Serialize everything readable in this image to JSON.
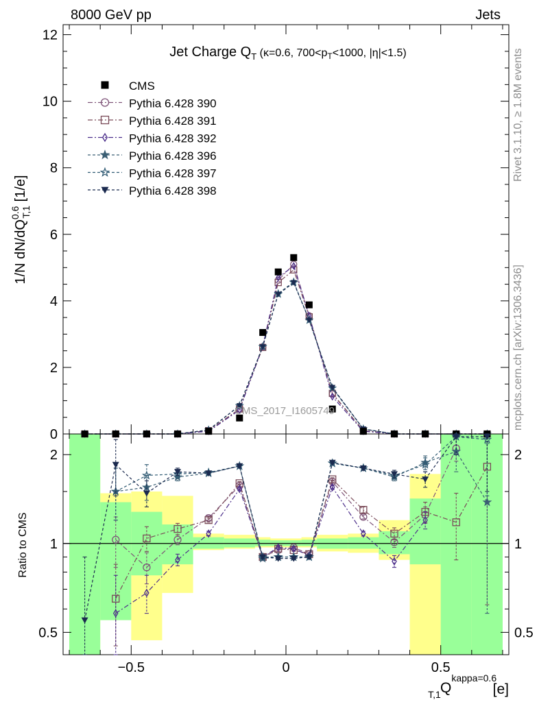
{
  "header": {
    "left": "8000 GeV pp",
    "right": "Jets"
  },
  "side_labels": {
    "rivet": "Rivet 3.1.10, ≥ 1.8M events",
    "mcplots": "mcplots.cern.ch [arXiv:1306.3436]"
  },
  "chart_data": {
    "type": "scatter",
    "title": "Jet Charge Q_T (κ=0.6, 700<p_T<1000, |η|<1.5)",
    "watermark": "CMS_2017_I1605749",
    "main": {
      "ylabel": "1/N dN/dQ^0.6_T,1 [1/e]",
      "ylim": [
        0,
        12.3
      ],
      "y_ticks": [
        0,
        2,
        4,
        6,
        8,
        10,
        12
      ],
      "xlim": [
        -0.72,
        0.72
      ]
    },
    "ratio": {
      "ylabel": "Ratio to CMS",
      "log_scale": true,
      "ylim": [
        0.42,
        2.35
      ],
      "y_ticks": [
        0.5,
        1,
        2
      ],
      "reference_line": 1
    },
    "xlabel": "Q^kappa=0.6_T,1 [e]",
    "x_ticks": [
      -0.5,
      0,
      0.5
    ],
    "x": [
      -0.65,
      -0.55,
      -0.45,
      -0.35,
      -0.25,
      -0.15,
      -0.075,
      -0.025,
      0.025,
      0.075,
      0.15,
      0.25,
      0.35,
      0.45,
      0.55,
      0.65
    ],
    "data_series": {
      "name": "CMS",
      "values": [
        0.0,
        0.0,
        0.0,
        0.0,
        0.08,
        0.48,
        3.05,
        4.87,
        5.3,
        3.88,
        0.75,
        0.08,
        0.0,
        0.0,
        0.0,
        0.0
      ]
    },
    "series": [
      {
        "name": "Pythia 6.428 390",
        "color": "#7e5378",
        "marker": "circle-open",
        "dash": "7,3,2,3",
        "ratio": [
          null,
          1.03,
          0.83,
          1.03,
          1.22,
          1.57,
          0.9,
          0.95,
          0.97,
          0.92,
          1.62,
          1.23,
          1.01,
          1.25,
          2.1,
          null
        ],
        "ratio_err": [
          null,
          0.2,
          0.1,
          0.04,
          0.02,
          0.02,
          0.01,
          0.01,
          0.01,
          0.01,
          0.02,
          0.02,
          0.04,
          0.08,
          0.2,
          null
        ]
      },
      {
        "name": "Pythia 6.428 391",
        "color": "#7a4a58",
        "marker": "square-open",
        "dash": "7,3,2,3",
        "ratio": [
          null,
          0.65,
          1.04,
          1.12,
          1.2,
          1.6,
          0.9,
          0.96,
          0.95,
          0.92,
          1.65,
          1.3,
          1.08,
          1.28,
          1.18,
          1.82
        ],
        "ratio_err": [
          null,
          0.2,
          0.1,
          0.05,
          0.02,
          0.02,
          0.01,
          0.01,
          0.01,
          0.01,
          0.02,
          0.03,
          0.05,
          0.1,
          0.3,
          1.2
        ]
      },
      {
        "name": "Pythia 6.428 392",
        "color": "#4b2d8a",
        "marker": "diamond-open",
        "dash": "7,3,2,3",
        "ratio": [
          null,
          0.58,
          0.68,
          0.88,
          1.08,
          1.53,
          0.9,
          0.97,
          0.96,
          0.91,
          1.55,
          1.08,
          0.87,
          1.2,
          null,
          null
        ],
        "ratio_err": [
          null,
          0.2,
          0.1,
          0.04,
          0.02,
          0.02,
          0.01,
          0.01,
          0.01,
          0.01,
          0.02,
          0.02,
          0.04,
          0.08,
          null,
          null
        ]
      },
      {
        "name": "Pythia 6.428 396",
        "color": "#3b5f74",
        "marker": "star-filled",
        "dash": "4,3",
        "ratio": [
          null,
          1.5,
          1.55,
          1.68,
          1.73,
          1.83,
          0.89,
          0.9,
          0.9,
          0.9,
          1.87,
          1.8,
          1.68,
          1.88,
          2.05,
          1.38
        ],
        "ratio_err": [
          null,
          0.3,
          0.15,
          0.05,
          0.02,
          0.02,
          0.01,
          0.01,
          0.01,
          0.01,
          0.02,
          0.03,
          0.05,
          0.1,
          0.3,
          0.8
        ]
      },
      {
        "name": "Pythia 6.428 397",
        "color": "#2f5a73",
        "marker": "star-open",
        "dash": "4,3",
        "ratio": [
          null,
          1.5,
          1.7,
          1.72,
          1.74,
          1.83,
          0.9,
          0.9,
          0.9,
          0.9,
          1.87,
          1.8,
          1.7,
          1.85,
          2.3,
          2.25
        ],
        "ratio_err": [
          null,
          0.3,
          0.15,
          0.05,
          0.02,
          0.02,
          0.01,
          0.01,
          0.01,
          0.01,
          0.02,
          0.03,
          0.05,
          0.1,
          0.3,
          0.8
        ]
      },
      {
        "name": "Pythia 6.428 398",
        "color": "#1b2a4f",
        "marker": "triangle-down-filled",
        "dash": "4,3",
        "ratio": [
          0.55,
          1.85,
          1.48,
          1.75,
          1.73,
          1.83,
          0.9,
          0.89,
          0.89,
          0.9,
          1.88,
          1.8,
          1.72,
          1.65,
          2.3,
          2.3
        ],
        "ratio_err": [
          0.35,
          0.4,
          0.15,
          0.05,
          0.02,
          0.02,
          0.01,
          0.01,
          0.01,
          0.01,
          0.02,
          0.03,
          0.05,
          0.1,
          0.3,
          0.8
        ]
      }
    ],
    "main_mc": [
      [
        0.0,
        0.0,
        0.0,
        0.0,
        0.1,
        0.75,
        2.62,
        4.62,
        5.1,
        3.55,
        1.2,
        0.1,
        0.0,
        0.0,
        0.0,
        0.0
      ],
      [
        0.0,
        0.0,
        0.0,
        0.0,
        0.1,
        0.75,
        2.6,
        4.55,
        4.93,
        3.52,
        1.22,
        0.1,
        0.0,
        0.0,
        0.0,
        0.0
      ],
      [
        0.0,
        0.0,
        0.0,
        0.0,
        0.08,
        0.72,
        2.63,
        4.7,
        5.05,
        3.55,
        1.12,
        0.08,
        0.0,
        0.0,
        0.0,
        0.0
      ],
      [
        0.0,
        0.0,
        0.0,
        0.0,
        0.12,
        0.85,
        2.63,
        4.2,
        4.55,
        3.42,
        1.38,
        0.15,
        0.0,
        0.0,
        0.0,
        0.0
      ],
      [
        0.0,
        0.0,
        0.0,
        0.0,
        0.12,
        0.85,
        2.62,
        4.22,
        4.57,
        3.42,
        1.38,
        0.15,
        0.0,
        0.0,
        0.0,
        0.0
      ],
      [
        0.0,
        0.0,
        0.0,
        0.0,
        0.12,
        0.85,
        2.62,
        4.2,
        4.55,
        3.42,
        1.4,
        0.15,
        0.0,
        0.0,
        0.0,
        0.0
      ]
    ],
    "bins": [
      -0.7,
      -0.6,
      -0.5,
      -0.4,
      -0.3,
      -0.2,
      -0.1,
      -0.05,
      0.0,
      0.05,
      0.1,
      0.2,
      0.3,
      0.4,
      0.5,
      0.6,
      0.7
    ],
    "band_stat_green": [
      [
        0.3,
        3.0
      ],
      [
        0.55,
        1.38
      ],
      [
        0.78,
        1.28
      ],
      [
        0.85,
        1.16
      ],
      [
        0.96,
        1.05
      ],
      [
        0.97,
        1.04
      ],
      [
        0.98,
        1.03
      ],
      [
        0.98,
        1.025
      ],
      [
        0.98,
        1.025
      ],
      [
        0.98,
        1.03
      ],
      [
        0.96,
        1.04
      ],
      [
        0.96,
        1.05
      ],
      [
        0.92,
        1.1
      ],
      [
        0.85,
        1.42
      ],
      [
        0.3,
        3.0
      ],
      [
        0.3,
        3.0
      ]
    ],
    "band_total_yellow": [
      [
        0.3,
        3.0
      ],
      [
        0.55,
        1.48
      ],
      [
        0.47,
        1.5
      ],
      [
        0.68,
        1.45
      ],
      [
        0.95,
        1.08
      ],
      [
        0.96,
        1.07
      ],
      [
        0.97,
        1.05
      ],
      [
        0.97,
        1.04
      ],
      [
        0.97,
        1.04
      ],
      [
        0.97,
        1.05
      ],
      [
        0.94,
        1.07
      ],
      [
        0.93,
        1.08
      ],
      [
        0.88,
        1.2
      ],
      [
        0.3,
        1.72
      ],
      [
        0.3,
        3.0
      ],
      [
        0.3,
        3.0
      ]
    ]
  }
}
